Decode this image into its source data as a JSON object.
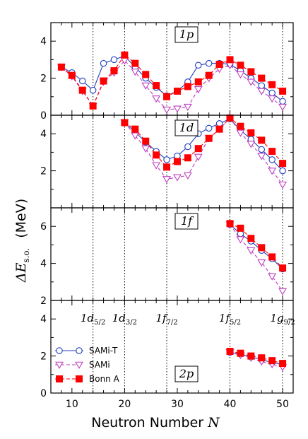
{
  "x_axis_title": "Neutron Number",
  "x_axis_symbol": "N",
  "y_axis_title_symbol": "ΔE",
  "y_axis_title_sub": "s.o.",
  "y_axis_title_unit": "(MeV)",
  "legend": [
    {
      "label": "SAMi-T",
      "color": "#1f3fbf",
      "marker": "circle-open",
      "dash": "solid"
    },
    {
      "label": "SAMi",
      "color": "#bf3fbf",
      "marker": "triangle-down-open",
      "dash": "dashed"
    },
    {
      "label": "Bonn A",
      "color": "#ff0000",
      "marker": "square-filled",
      "dash": "dashed"
    }
  ],
  "magic_labels": [
    {
      "main": "1d",
      "sub": "5/2",
      "x": 14
    },
    {
      "main": "1d",
      "sub": "3/2",
      "x": 20
    },
    {
      "main": "1f",
      "sub": "7/2",
      "x": 28
    },
    {
      "main": "1f",
      "sub": "5/2",
      "x": 40
    },
    {
      "main": "1g",
      "sub": "9/2",
      "x": 50
    }
  ],
  "chart_data": [
    {
      "type": "line",
      "panel_label": "1p",
      "ylim": [
        0,
        5
      ],
      "yticks": [
        0,
        2,
        4
      ],
      "xlim": [
        6,
        52
      ],
      "xticks": [
        10,
        20,
        30,
        40,
        50
      ],
      "vlines": [
        14,
        20,
        28,
        40,
        50
      ],
      "series": [
        {
          "name": "SAMi-T",
          "x": [
            8,
            10,
            12,
            14,
            16,
            18,
            20,
            22,
            24,
            26,
            28,
            30,
            32,
            34,
            36,
            38,
            40,
            42,
            44,
            46,
            48,
            50
          ],
          "y": [
            2.6,
            2.3,
            1.85,
            1.35,
            2.8,
            3.0,
            3.2,
            2.6,
            2.0,
            1.5,
            1.05,
            1.3,
            1.8,
            2.7,
            2.8,
            2.8,
            2.75,
            2.4,
            2.0,
            1.6,
            1.2,
            0.75
          ]
        },
        {
          "name": "SAMi",
          "x": [
            8,
            10,
            12,
            14,
            16,
            18,
            20,
            22,
            24,
            26,
            28,
            30,
            32,
            34,
            36,
            38,
            40,
            42,
            44,
            46,
            48,
            50
          ],
          "y": [
            2.6,
            2.1,
            1.3,
            0.5,
            1.8,
            2.3,
            2.95,
            2.35,
            1.6,
            0.9,
            0.3,
            0.35,
            0.45,
            1.4,
            2.0,
            2.5,
            2.7,
            2.2,
            1.8,
            1.3,
            0.9,
            0.45
          ]
        },
        {
          "name": "Bonn A",
          "x": [
            8,
            10,
            12,
            14,
            16,
            18,
            20,
            22,
            24,
            26,
            28,
            30,
            32,
            34,
            36,
            38,
            40,
            42,
            44,
            46,
            48,
            50
          ],
          "y": [
            2.6,
            2.15,
            1.35,
            0.5,
            1.85,
            2.4,
            3.25,
            2.8,
            2.2,
            1.6,
            1.0,
            1.3,
            1.55,
            1.8,
            2.15,
            2.75,
            3.0,
            2.7,
            2.35,
            2.0,
            1.65,
            1.3
          ]
        }
      ]
    },
    {
      "type": "line",
      "panel_label": "1d",
      "ylim": [
        0,
        5
      ],
      "yticks": [
        2,
        4
      ],
      "xlim": [
        6,
        52
      ],
      "xticks": [
        10,
        20,
        30,
        40,
        50
      ],
      "vlines": [
        14,
        20,
        28,
        40,
        50
      ],
      "series": [
        {
          "name": "SAMi-T",
          "x": [
            20,
            22,
            24,
            26,
            28,
            30,
            32,
            34,
            36,
            38,
            40,
            42,
            44,
            46,
            48,
            50
          ],
          "y": [
            4.6,
            4.1,
            3.55,
            3.05,
            2.6,
            2.8,
            3.3,
            4.0,
            4.3,
            4.55,
            4.8,
            4.2,
            3.7,
            3.15,
            2.6,
            2.0
          ]
        },
        {
          "name": "SAMi",
          "x": [
            20,
            22,
            24,
            26,
            28,
            30,
            32,
            34,
            36,
            38,
            40,
            42,
            44,
            46,
            48,
            50
          ],
          "y": [
            4.6,
            3.9,
            3.2,
            2.3,
            1.55,
            1.65,
            1.75,
            2.75,
            3.75,
            4.25,
            4.85,
            4.05,
            3.45,
            2.8,
            2.0,
            1.25
          ]
        },
        {
          "name": "Bonn A",
          "x": [
            20,
            22,
            24,
            26,
            28,
            30,
            32,
            34,
            36,
            38,
            40,
            42,
            44,
            46,
            48,
            50
          ],
          "y": [
            4.6,
            4.25,
            3.6,
            2.85,
            2.2,
            2.5,
            2.7,
            3.2,
            3.75,
            4.25,
            4.85,
            4.4,
            4.05,
            3.65,
            3.05,
            2.4
          ]
        }
      ]
    },
    {
      "type": "line",
      "panel_label": "1f",
      "ylim": [
        2,
        7
      ],
      "yticks": [
        2,
        4,
        6
      ],
      "xlim": [
        6,
        52
      ],
      "xticks": [
        10,
        20,
        30,
        40,
        50
      ],
      "vlines": [
        14,
        20,
        28,
        40,
        50
      ],
      "series": [
        {
          "name": "SAMi-T",
          "x": [
            40,
            42,
            44,
            46,
            48,
            50
          ],
          "y": [
            6.1,
            5.6,
            5.2,
            4.7,
            4.25,
            3.7
          ]
        },
        {
          "name": "SAMi",
          "x": [
            40,
            42,
            44,
            46,
            48,
            50
          ],
          "y": [
            6.1,
            5.3,
            4.7,
            4.05,
            3.3,
            2.5
          ]
        },
        {
          "name": "Bonn A",
          "x": [
            40,
            42,
            44,
            46,
            48,
            50
          ],
          "y": [
            6.15,
            5.9,
            5.35,
            4.85,
            4.35,
            3.75
          ]
        }
      ]
    },
    {
      "type": "line",
      "panel_label": "2p",
      "ylim": [
        0,
        5
      ],
      "yticks": [
        0,
        2,
        4
      ],
      "xlim": [
        6,
        52
      ],
      "xticks": [
        10,
        20,
        30,
        40,
        50
      ],
      "vlines": [
        14,
        20,
        28,
        40,
        50
      ],
      "series": [
        {
          "name": "SAMi-T",
          "x": [
            40,
            42,
            44,
            46,
            48,
            50
          ],
          "y": [
            2.2,
            2.1,
            1.95,
            1.8,
            1.65,
            1.55
          ]
        },
        {
          "name": "SAMi",
          "x": [
            40,
            42,
            44,
            46,
            48,
            50
          ],
          "y": [
            2.2,
            2.05,
            1.9,
            1.7,
            1.55,
            1.4
          ]
        },
        {
          "name": "Bonn A",
          "x": [
            40,
            42,
            44,
            46,
            48,
            50
          ],
          "y": [
            2.25,
            2.15,
            2.0,
            1.9,
            1.75,
            1.6
          ]
        }
      ]
    }
  ]
}
